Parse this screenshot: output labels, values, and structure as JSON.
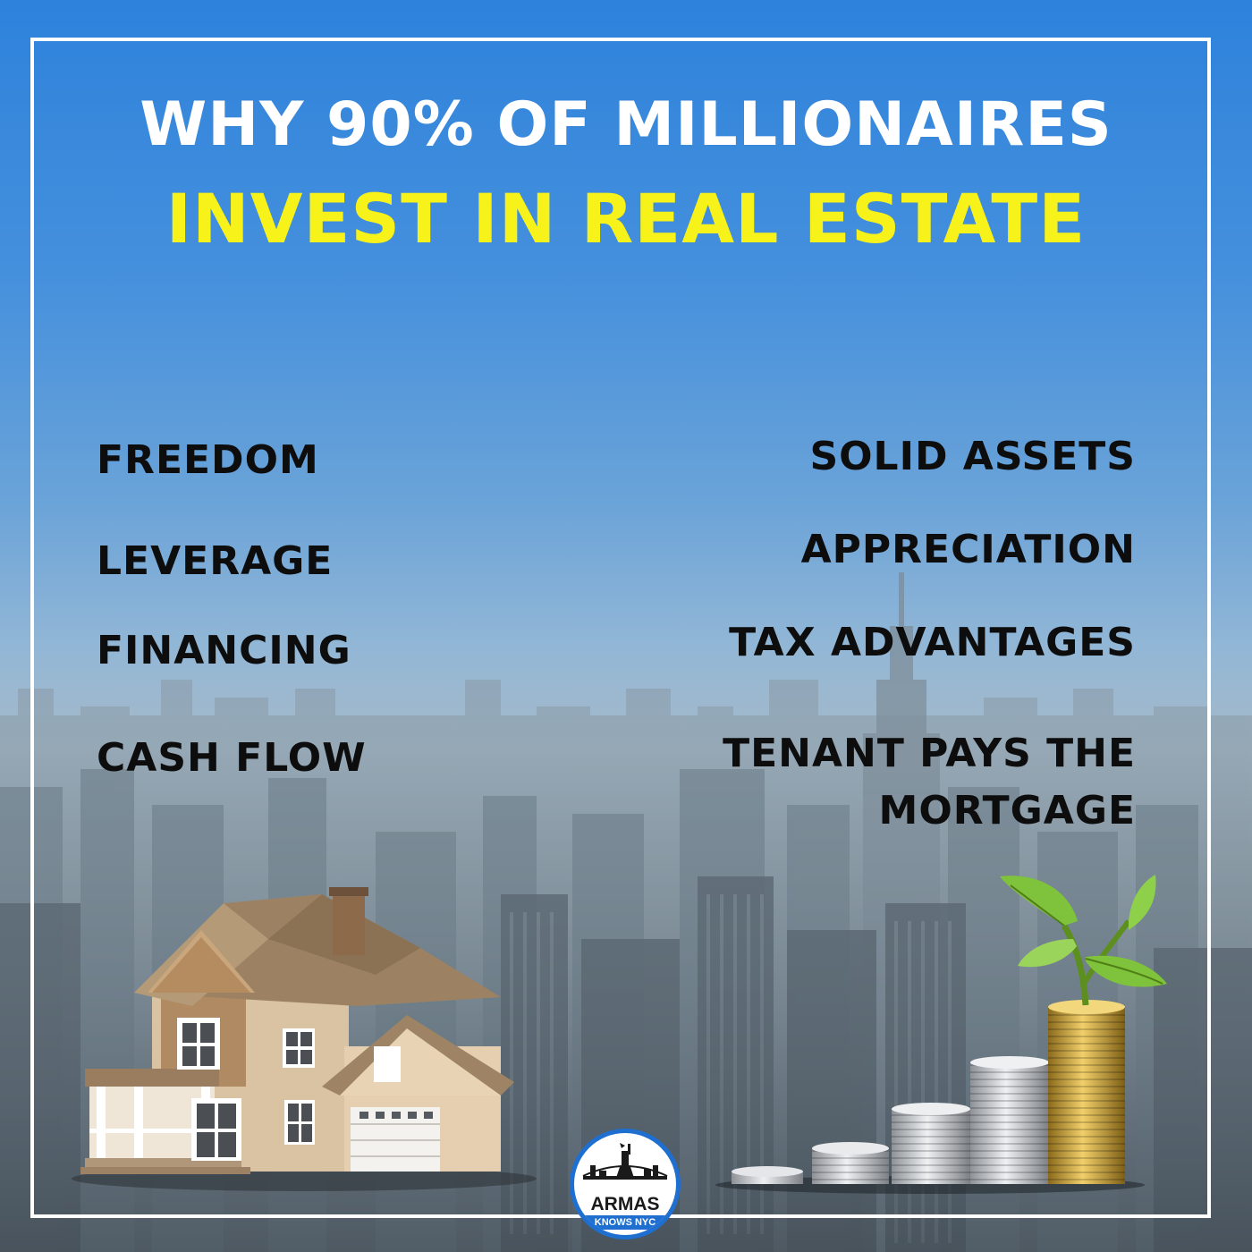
{
  "title": {
    "line1": "WHY 90% OF MILLIONAIRES",
    "line2": "INVEST IN REAL ESTATE"
  },
  "reasons_left": [
    "FREEDOM",
    "LEVERAGE",
    "FINANCING",
    "CASH FLOW"
  ],
  "reasons_right": [
    "SOLID ASSETS",
    "APPRECIATION",
    "TAX ADVANTAGES",
    "TENANT PAYS THE",
    "MORTGAGE"
  ],
  "logo": {
    "line1": "ARMAS",
    "line2": "KNOWS NYC"
  },
  "colors": {
    "sky_top": "#2e82dc",
    "headline_accent": "#f7f21a",
    "text_dark": "#0d0d0d",
    "logo_blue": "#1e6fd0"
  },
  "icons": [
    "city-skyline-icon",
    "house-icon",
    "coin-stacks-icon",
    "plant-sprout-icon",
    "statue-of-liberty-icon"
  ]
}
